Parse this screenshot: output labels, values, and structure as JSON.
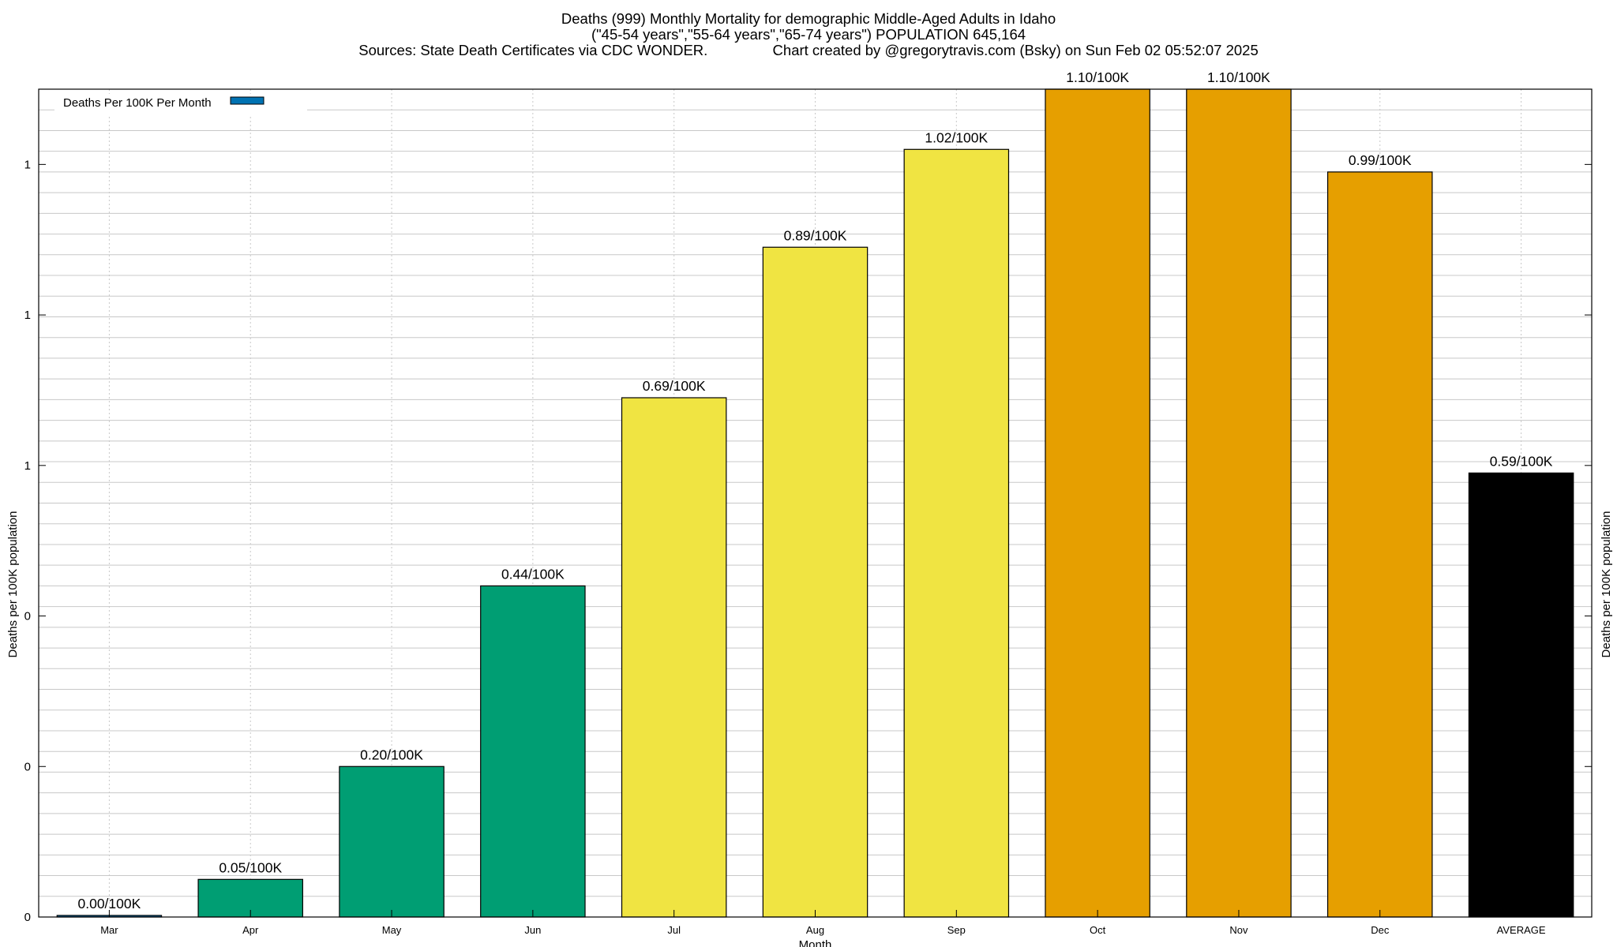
{
  "header": {
    "title_line1": "Deaths (999) Monthly Mortality for demographic Middle-Aged Adults in Idaho",
    "title_line2": "(\"45-54 years\",\"55-64 years\",\"65-74 years\") POPULATION 645,164",
    "title_line3": "Sources: State Death Certificates via CDC WONDER.                Chart created by @gregorytravis.com (Bsky) on Sun Feb 02 05:52:07 2025"
  },
  "chart_data": {
    "type": "bar",
    "title": "Deaths (999) Monthly Mortality for demographic Middle-Aged Adults in Idaho",
    "xlabel": "Month",
    "ylabel": "Deaths per 100K population",
    "y2label": "Deaths per 100K population",
    "categories": [
      "Mar",
      "Apr",
      "May",
      "Jun",
      "Jul",
      "Aug",
      "Sep",
      "Oct",
      "Nov",
      "Dec",
      "AVERAGE"
    ],
    "values": [
      0.0,
      0.05,
      0.2,
      0.44,
      0.69,
      0.89,
      1.02,
      1.1,
      1.1,
      0.99,
      0.59
    ],
    "data_labels": [
      "0.00/100K",
      "0.05/100K",
      "0.20/100K",
      "0.44/100K",
      "0.69/100K",
      "0.89/100K",
      "1.02/100K",
      "1.10/100K",
      "1.10/100K",
      "0.99/100K",
      "0.59/100K"
    ],
    "bar_colors": [
      "#0072b2",
      "#009e73",
      "#009e73",
      "#009e73",
      "#f0e442",
      "#f0e442",
      "#f0e442",
      "#e69f00",
      "#e69f00",
      "#e69f00",
      "#000000"
    ],
    "ylim": [
      0,
      1.1
    ],
    "yticks": [
      0,
      0.2,
      0.4,
      0.6,
      0.8,
      1.0
    ],
    "ytick_labels": [
      "0",
      "0",
      "0",
      "1",
      "1",
      "1"
    ],
    "legend": {
      "label": "Deaths Per 100K Per Month",
      "color": "#0072b2",
      "position": "top-left"
    },
    "grid": true
  }
}
